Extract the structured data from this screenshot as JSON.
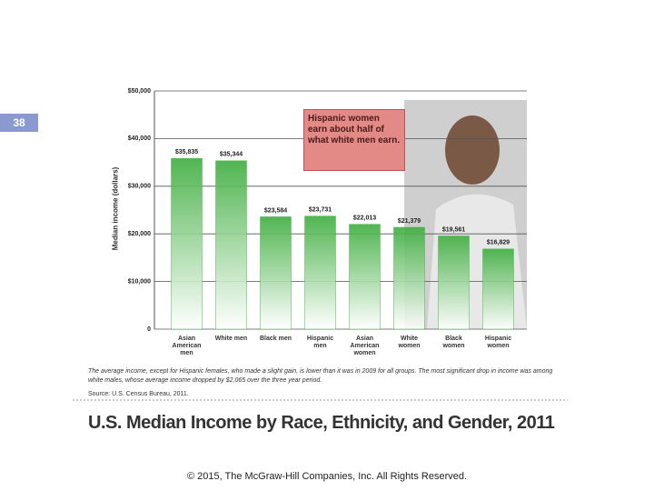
{
  "slide_number": "38",
  "footer": "© 2015, The McGraw-Hill Companies, Inc.  All Rights Reserved.",
  "chart_data": {
    "type": "bar",
    "title": "U.S. Median Income by Race, Ethnicity, and Gender, 2011",
    "y_label": "Median income (dollars)",
    "annotation": "Hispanic women earn about half of what white men earn.",
    "caption": "The average income, except for Hispanic females, who made a slight gain, is lower than it was in 2009 for all groups. The most significant drop in income was among white males, whose average income dropped by $2,065 over the three year period.",
    "source": "Source: U.S. Census Bureau, 2011.",
    "categories": [
      "Asian American men",
      "White men",
      "Black men",
      "Hispanic men",
      "Asian American women",
      "White women",
      "Black women",
      "Hispanic women"
    ],
    "values": [
      35835,
      35344,
      23584,
      23731,
      22013,
      21379,
      19561,
      16829
    ],
    "value_labels": [
      "$35,835",
      "$35,344",
      "$23,584",
      "$23,731",
      "$22,013",
      "$21,379",
      "$19,561",
      "$16,829"
    ],
    "color": "#3fae3f",
    "ylim": [
      0,
      50000
    ],
    "yticks": [
      0,
      {
        "value": 10000,
        "label": "$10,000"
      },
      {
        "value": 20000,
        "label": "$20,000"
      },
      {
        "value": 30000,
        "label": "$30,000"
      },
      {
        "value": 40000,
        "label": "$40,000"
      },
      {
        "value": 50000,
        "label": "$50,000"
      }
    ],
    "grid": true
  }
}
